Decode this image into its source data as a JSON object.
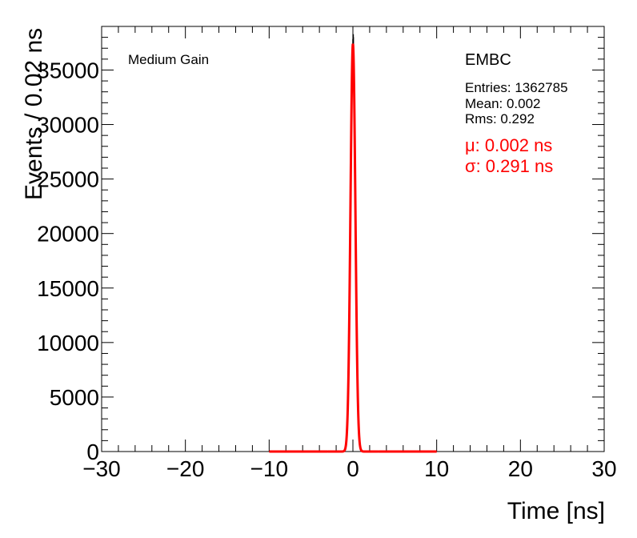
{
  "chart_data": {
    "type": "line",
    "xlabel": "Time [ns]",
    "ylabel": "Events / 0.02 ns",
    "xlim": [
      -30,
      30
    ],
    "ylim": [
      0,
      39000
    ],
    "x_ticks": [
      -30,
      -20,
      -10,
      0,
      10,
      20,
      30
    ],
    "y_ticks": [
      0,
      5000,
      10000,
      15000,
      20000,
      25000,
      30000,
      35000
    ],
    "x_tick_labels": [
      "−30",
      "−20",
      "−10",
      "0",
      "10",
      "20",
      "30"
    ],
    "y_tick_labels": [
      "0",
      "5000",
      "10000",
      "15000",
      "20000",
      "25000",
      "30000",
      "35000"
    ],
    "grid": false,
    "legend": "none",
    "annotations": {
      "gain": "Medium Gain",
      "detector": "EMBC",
      "entries": "Entries: 1362785",
      "mean": "Mean: 0.002",
      "rms": "Rms: 0.292",
      "fit_mu": "μ: 0.002 ns",
      "fit_sigma": "σ: 0.291 ns"
    },
    "series": [
      {
        "kind": "histogram",
        "color": "#000000",
        "bin_width": 0.02,
        "peak_x": 0.0,
        "peak_y": 37400,
        "mean": 0.002,
        "rms": 0.292
      },
      {
        "kind": "gaussian-fit",
        "color": "#ff0000",
        "mu": 0.002,
        "sigma": 0.291,
        "amplitude": 37400,
        "x_range": [
          -10,
          10
        ]
      }
    ]
  }
}
